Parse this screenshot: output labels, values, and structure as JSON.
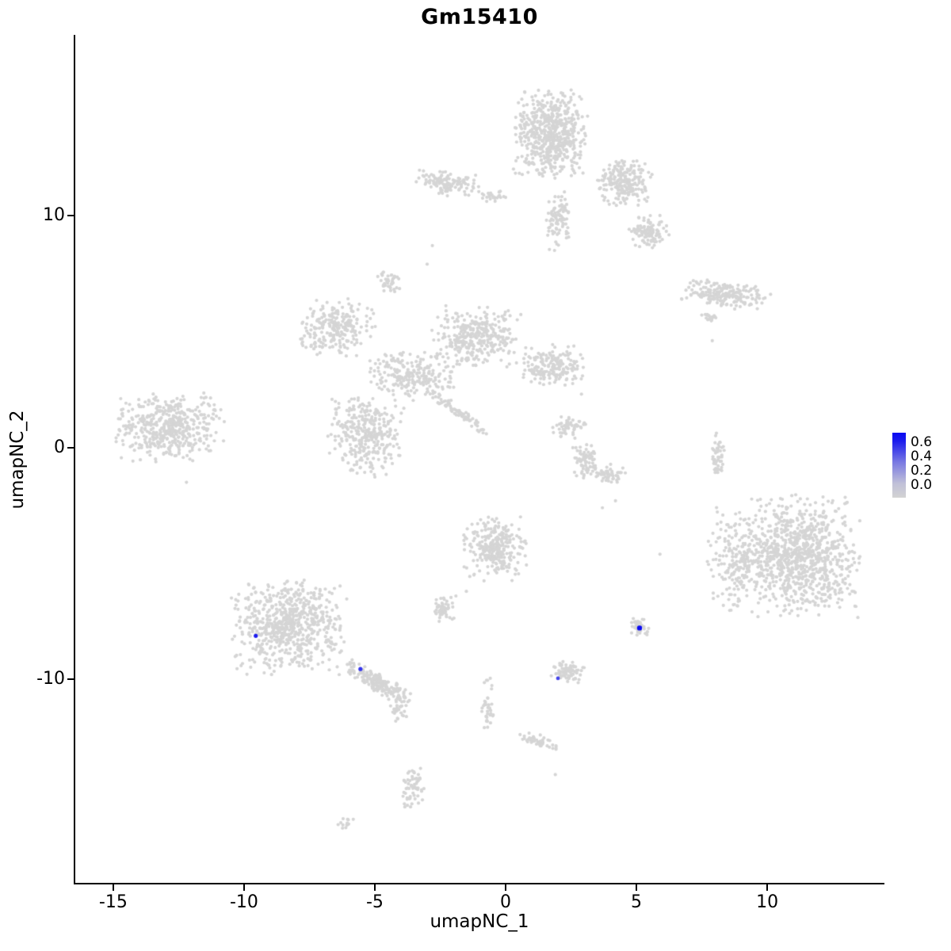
{
  "chart_data": {
    "type": "scatter",
    "title": "Gm15410",
    "xlabel": "umapNC_1",
    "ylabel": "umapNC_2",
    "xlim": [
      -16.45,
      14.45
    ],
    "ylim": [
      -18.8,
      17.75
    ],
    "x_ticks": [
      "-15",
      "-10",
      "-5",
      "0",
      "5",
      "10"
    ],
    "x_tick_values": [
      -15,
      -10,
      -5,
      0,
      5,
      10
    ],
    "y_ticks": [
      "10",
      "0",
      "-10"
    ],
    "y_tick_values": [
      10,
      0,
      -10
    ],
    "grid": false,
    "base_point_color": "#D5D5D5",
    "point_radius": 2.1,
    "legend": {
      "position": "right",
      "ticks": [
        "0.6",
        "0.4",
        "0.2",
        "0.0"
      ],
      "max": 0.68,
      "top_color": "#0A0AF2",
      "mid_color": "#7878E2",
      "bottom_color": "#D3D3D3",
      "gradient_stops": [
        "#0A0AF2 0%",
        "#1A1AEE 12%",
        "#7878E2 45%",
        "#C0C0D8 78%",
        "#D3D3D3 100%"
      ]
    },
    "clusters": [
      {
        "x": 1.73,
        "y": 13.48,
        "rx": 1.5,
        "ry": 2.0,
        "n": 600
      },
      {
        "x": 2.03,
        "y": 9.73,
        "rx": 0.5,
        "ry": 1.4,
        "n": 90
      },
      {
        "x": 4.55,
        "y": 11.37,
        "rx": 1.2,
        "ry": 1.1,
        "n": 220
      },
      {
        "x": 5.45,
        "y": 9.32,
        "rx": 0.8,
        "ry": 0.8,
        "n": 110
      },
      {
        "x": -2.21,
        "y": 11.37,
        "rx": 1.3,
        "ry": 0.55,
        "n": 120,
        "rot": -8
      },
      {
        "x": -0.39,
        "y": 10.85,
        "rx": 0.6,
        "ry": 0.3,
        "n": 25
      },
      {
        "x": -4.48,
        "y": 7.1,
        "rx": 0.45,
        "ry": 0.55,
        "n": 40
      },
      {
        "x": 8.39,
        "y": 6.59,
        "rx": 1.9,
        "ry": 0.6,
        "n": 200,
        "rot": -8
      },
      {
        "x": 7.79,
        "y": 5.63,
        "rx": 0.4,
        "ry": 0.2,
        "n": 18
      },
      {
        "x": -6.45,
        "y": 5.12,
        "rx": 1.5,
        "ry": 1.3,
        "n": 240
      },
      {
        "x": -1.09,
        "y": 4.78,
        "rx": 1.8,
        "ry": 1.4,
        "n": 330
      },
      {
        "x": 1.79,
        "y": 3.52,
        "rx": 1.3,
        "ry": 1.0,
        "n": 180
      },
      {
        "x": -3.58,
        "y": 3.07,
        "rx": 1.9,
        "ry": 1.1,
        "n": 230
      },
      {
        "x": -5.33,
        "y": 0.51,
        "rx": 1.5,
        "ry": 1.9,
        "n": 330
      },
      {
        "x": -1.76,
        "y": 1.47,
        "rx": 1.5,
        "ry": 0.22,
        "n": 70,
        "rot": -38
      },
      {
        "x": 2.42,
        "y": 0.85,
        "rx": 0.7,
        "ry": 0.5,
        "n": 50
      },
      {
        "x": 3.0,
        "y": -0.58,
        "rx": 0.5,
        "ry": 0.8,
        "n": 70
      },
      {
        "x": 4.0,
        "y": -1.09,
        "rx": 0.7,
        "ry": 0.45,
        "n": 50
      },
      {
        "x": 8.09,
        "y": -0.41,
        "rx": 0.35,
        "ry": 1.2,
        "n": 50
      },
      {
        "x": -12.9,
        "y": 0.85,
        "rx": 2.2,
        "ry": 1.6,
        "n": 480
      },
      {
        "x": 11.2,
        "y": -4.68,
        "rx": 2.5,
        "ry": 2.7,
        "n": 950
      },
      {
        "x": 8.7,
        "y": -4.78,
        "rx": 1.1,
        "ry": 2.4,
        "n": 180
      },
      {
        "x": -0.39,
        "y": -4.33,
        "rx": 1.3,
        "ry": 1.5,
        "n": 280
      },
      {
        "x": -2.36,
        "y": -7.0,
        "rx": 0.5,
        "ry": 0.55,
        "n": 55
      },
      {
        "x": -8.27,
        "y": -7.75,
        "rx": 2.3,
        "ry": 2.1,
        "n": 680
      },
      {
        "x": -4.88,
        "y": -10.14,
        "rx": 1.5,
        "ry": 0.4,
        "n": 190,
        "rot": -33
      },
      {
        "x": -4.09,
        "y": -11.33,
        "rx": 0.4,
        "ry": 0.5,
        "n": 25
      },
      {
        "x": 2.36,
        "y": -9.66,
        "rx": 0.7,
        "ry": 0.5,
        "n": 75
      },
      {
        "x": 5.09,
        "y": -7.71,
        "rx": 0.4,
        "ry": 0.45,
        "n": 40
      },
      {
        "x": -0.67,
        "y": -11.19,
        "rx": 0.25,
        "ry": 1.5,
        "n": 35
      },
      {
        "x": 1.27,
        "y": -12.66,
        "rx": 0.9,
        "ry": 0.3,
        "n": 45,
        "rot": -15
      },
      {
        "x": -3.55,
        "y": -14.68,
        "rx": 0.45,
        "ry": 1.0,
        "n": 60
      },
      {
        "x": -6.12,
        "y": -16.21,
        "rx": 0.35,
        "ry": 0.25,
        "n": 14
      }
    ],
    "extra_points": [
      [
        -2.8,
        8.7
      ],
      [
        -3.0,
        7.9
      ],
      [
        3.7,
        -2.6
      ],
      [
        4.2,
        -2.3
      ],
      [
        7.9,
        4.6
      ],
      [
        2.9,
        2.3
      ],
      [
        -1.5,
        -6.2
      ],
      [
        -1.9,
        -6.4
      ],
      [
        5.9,
        -4.6
      ],
      [
        1.9,
        -14.1
      ],
      [
        -12.2,
        -1.5
      ],
      [
        0.3,
        12.0
      ]
    ],
    "highlighted_points": [
      {
        "x": -9.55,
        "y": -8.12,
        "value": 0.62,
        "r": 2.6
      },
      {
        "x": -5.55,
        "y": -9.55,
        "value": 0.55,
        "r": 2.6
      },
      {
        "x": 2.0,
        "y": -9.95,
        "value": 0.5,
        "r": 2.4
      },
      {
        "x": 5.12,
        "y": -7.78,
        "value": 0.68,
        "r": 3.2
      }
    ]
  }
}
